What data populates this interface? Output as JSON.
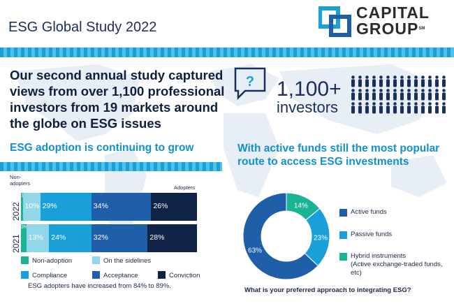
{
  "header": {
    "title": "ESG Global Study 2022",
    "logo_text_line1": "CAPITAL",
    "logo_text_line2": "GROUP",
    "logo_mark": "SM"
  },
  "intro": {
    "text": "Our second annual study captured views from over 1,100 professional investors from 19 markets around the globe on ESG issues",
    "big_number": "1,100+",
    "big_number_sub": "investors",
    "question_icon": "?",
    "icon": "speech-bubble-question-icon",
    "people_icon": "person-icon"
  },
  "left_heading": "ESG adoption is continuing to grow",
  "right_heading": "With active funds still the most popular route to access ESG investments",
  "colors": {
    "non_adoption": "#1ab394",
    "on_the_sidelines": "#92d6ec",
    "compliance": "#1aa0d8",
    "acceptance": "#1f5ea8",
    "conviction": "#0e2346",
    "accent": "#1190cf"
  },
  "chart_data": [
    {
      "type": "bar",
      "orientation": "horizontal-stacked",
      "categories": [
        "2022",
        "2021"
      ],
      "series": [
        {
          "name": "Non-adoption",
          "values": [
            1,
            3
          ],
          "labels": [
            "1%",
            "3%"
          ]
        },
        {
          "name": "On the sidelines",
          "values": [
            10,
            13
          ],
          "labels": [
            "10%",
            "13%"
          ]
        },
        {
          "name": "Compliance",
          "values": [
            29,
            24
          ],
          "labels": [
            "29%",
            "24%"
          ]
        },
        {
          "name": "Acceptance",
          "values": [
            34,
            32
          ],
          "labels": [
            "34%",
            "32%"
          ]
        },
        {
          "name": "Conviction",
          "values": [
            26,
            28
          ],
          "labels": [
            "26%",
            "28%"
          ]
        }
      ],
      "edge_label_left": "Non-\nadopters",
      "edge_label_right": "Adopters",
      "note": "ESG adopters have increased from 84% to 89%.",
      "legend_placement": "bottom"
    },
    {
      "type": "pie",
      "donut": true,
      "series": [
        {
          "name": "Hybrid instruments",
          "sub": "(Active exchange-traded funds, etc)",
          "value": 14,
          "label": "14%"
        },
        {
          "name": "Passive funds",
          "value": 23,
          "label": "23%"
        },
        {
          "name": "Active funds",
          "value": 63,
          "label": "63%"
        }
      ],
      "question": "What is your preferred approach to integrating ESG?",
      "legend_placement": "right"
    }
  ]
}
